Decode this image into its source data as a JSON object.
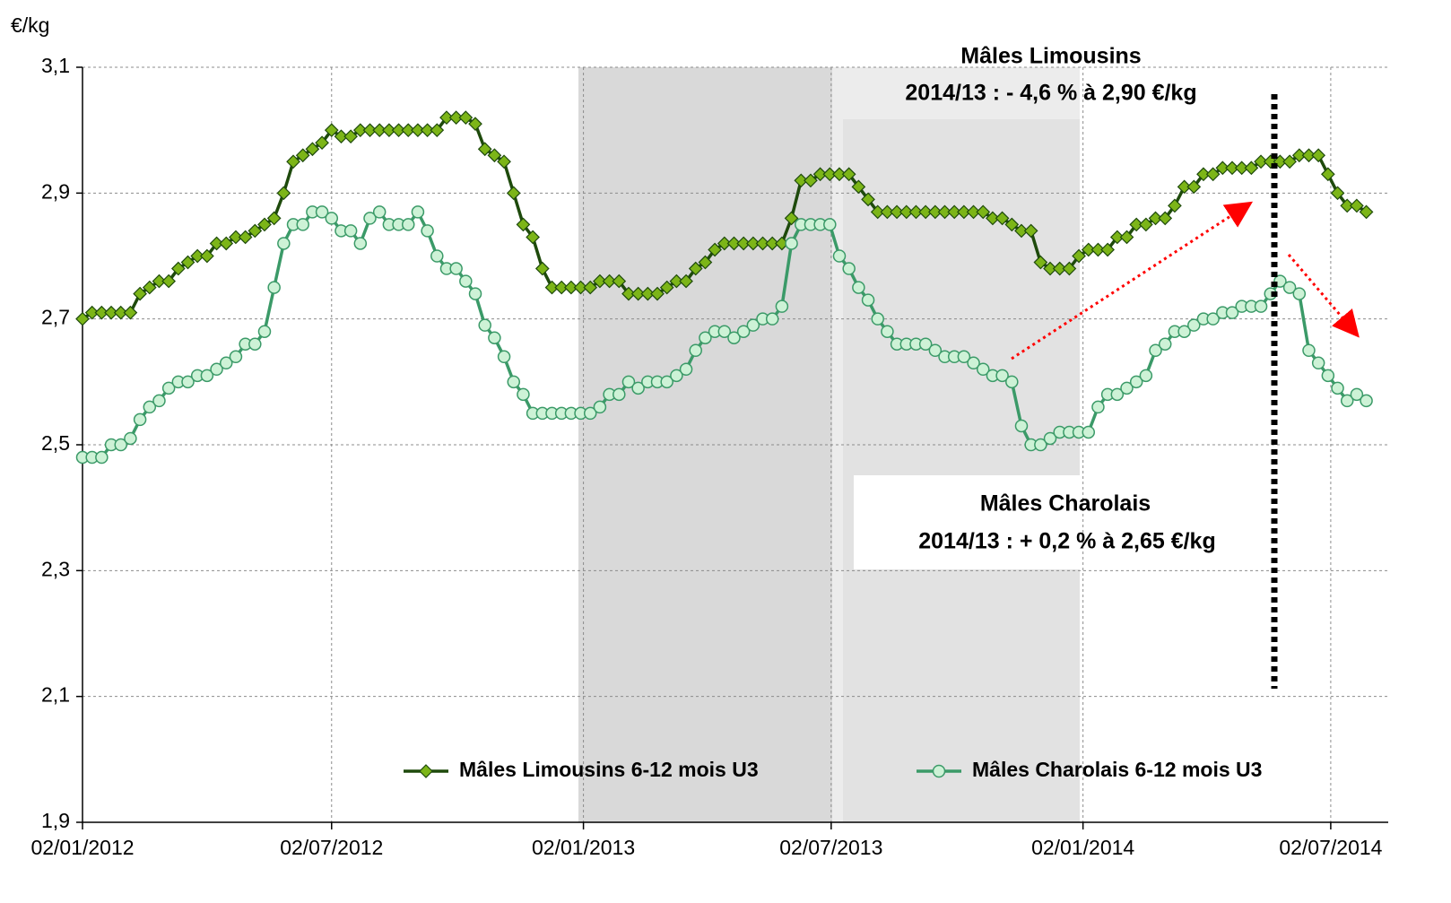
{
  "chart_data": {
    "type": "line",
    "y_label": "€/kg",
    "x": [
      "02/01/2012",
      "09/01/2012",
      "16/01/2012",
      "23/01/2012",
      "30/01/2012",
      "06/02/2012",
      "13/02/2012",
      "20/02/2012",
      "27/02/2012",
      "05/03/2012",
      "12/03/2012",
      "19/03/2012",
      "26/03/2012",
      "02/04/2012",
      "09/04/2012",
      "16/04/2012",
      "23/04/2012",
      "30/04/2012",
      "07/05/2012",
      "14/05/2012",
      "21/05/2012",
      "28/05/2012",
      "04/06/2012",
      "11/06/2012",
      "18/06/2012",
      "25/06/2012",
      "02/07/2012",
      "09/07/2012",
      "16/07/2012",
      "23/07/2012",
      "30/07/2012",
      "06/08/2012",
      "13/08/2012",
      "20/08/2012",
      "27/08/2012",
      "03/09/2012",
      "10/09/2012",
      "17/09/2012",
      "24/09/2012",
      "01/10/2012",
      "08/10/2012",
      "15/10/2012",
      "22/10/2012",
      "29/10/2012",
      "05/11/2012",
      "12/11/2012",
      "19/11/2012",
      "26/11/2012",
      "03/12/2012",
      "10/12/2012",
      "17/12/2012",
      "24/12/2012",
      "31/12/2012",
      "07/01/2013",
      "14/01/2013",
      "21/01/2013",
      "28/01/2013",
      "04/02/2013",
      "11/02/2013",
      "18/02/2013",
      "25/02/2013",
      "04/03/2013",
      "11/03/2013",
      "18/03/2013",
      "25/03/2013",
      "01/04/2013",
      "08/04/2013",
      "15/04/2013",
      "22/04/2013",
      "29/04/2013",
      "06/05/2013",
      "13/05/2013",
      "20/05/2013",
      "27/05/2013",
      "03/06/2013",
      "10/06/2013",
      "17/06/2013",
      "24/06/2013",
      "01/07/2013",
      "08/07/2013",
      "15/07/2013",
      "22/07/2013",
      "29/07/2013",
      "05/08/2013",
      "12/08/2013",
      "19/08/2013",
      "26/08/2013",
      "02/09/2013",
      "09/09/2013",
      "16/09/2013",
      "23/09/2013",
      "30/09/2013",
      "07/10/2013",
      "14/10/2013",
      "21/10/2013",
      "28/10/2013",
      "04/11/2013",
      "11/11/2013",
      "18/11/2013",
      "25/11/2013",
      "02/12/2013",
      "09/12/2013",
      "16/12/2013",
      "23/12/2013",
      "30/12/2013",
      "06/01/2014",
      "13/01/2014",
      "20/01/2014",
      "27/01/2014",
      "03/02/2014",
      "10/02/2014",
      "17/02/2014",
      "24/02/2014",
      "03/03/2014",
      "10/03/2014",
      "17/03/2014",
      "24/03/2014",
      "31/03/2014",
      "07/04/2014",
      "14/04/2014",
      "21/04/2014",
      "28/04/2014",
      "05/05/2014",
      "12/05/2014",
      "19/05/2014",
      "26/05/2014",
      "02/06/2014",
      "09/06/2014",
      "16/06/2014",
      "23/06/2014",
      "30/06/2014",
      "07/07/2014",
      "14/07/2014",
      "21/07/2014",
      "28/07/2014"
    ],
    "series": [
      {
        "name": "Mâles Limousins 6-12 mois U3",
        "color": "#1e4a0c",
        "marker": "diamond",
        "marker_fill": "#7cb518",
        "values": [
          2.7,
          2.71,
          2.71,
          2.71,
          2.71,
          2.71,
          2.74,
          2.75,
          2.76,
          2.76,
          2.78,
          2.79,
          2.8,
          2.8,
          2.82,
          2.82,
          2.83,
          2.83,
          2.84,
          2.85,
          2.86,
          2.9,
          2.95,
          2.96,
          2.97,
          2.98,
          3.0,
          2.99,
          2.99,
          3.0,
          3.0,
          3.0,
          3.0,
          3.0,
          3.0,
          3.0,
          3.0,
          3.0,
          3.02,
          3.02,
          3.02,
          3.01,
          2.97,
          2.96,
          2.95,
          2.9,
          2.85,
          2.83,
          2.78,
          2.75,
          2.75,
          2.75,
          2.75,
          2.75,
          2.76,
          2.76,
          2.76,
          2.74,
          2.74,
          2.74,
          2.74,
          2.75,
          2.76,
          2.76,
          2.78,
          2.79,
          2.81,
          2.82,
          2.82,
          2.82,
          2.82,
          2.82,
          2.82,
          2.82,
          2.86,
          2.92,
          2.92,
          2.93,
          2.93,
          2.93,
          2.93,
          2.91,
          2.89,
          2.87,
          2.87,
          2.87,
          2.87,
          2.87,
          2.87,
          2.87,
          2.87,
          2.87,
          2.87,
          2.87,
          2.87,
          2.86,
          2.86,
          2.85,
          2.84,
          2.84,
          2.79,
          2.78,
          2.78,
          2.78,
          2.8,
          2.81,
          2.81,
          2.81,
          2.83,
          2.83,
          2.85,
          2.85,
          2.86,
          2.86,
          2.88,
          2.91,
          2.91,
          2.93,
          2.93,
          2.94,
          2.94,
          2.94,
          2.94,
          2.95,
          2.95,
          2.95,
          2.95,
          2.96,
          2.96,
          2.96,
          2.93,
          2.9,
          2.88,
          2.88,
          2.87
        ]
      },
      {
        "name": "Mâles Charolais 6-12 mois U3",
        "color": "#3b9a68",
        "marker": "circle",
        "marker_fill": "#cdf2d6",
        "values": [
          2.48,
          2.48,
          2.48,
          2.5,
          2.5,
          2.51,
          2.54,
          2.56,
          2.57,
          2.59,
          2.6,
          2.6,
          2.61,
          2.61,
          2.62,
          2.63,
          2.64,
          2.66,
          2.66,
          2.68,
          2.75,
          2.82,
          2.85,
          2.85,
          2.87,
          2.87,
          2.86,
          2.84,
          2.84,
          2.82,
          2.86,
          2.87,
          2.85,
          2.85,
          2.85,
          2.87,
          2.84,
          2.8,
          2.78,
          2.78,
          2.76,
          2.74,
          2.69,
          2.67,
          2.64,
          2.6,
          2.58,
          2.55,
          2.55,
          2.55,
          2.55,
          2.55,
          2.55,
          2.55,
          2.56,
          2.58,
          2.58,
          2.6,
          2.59,
          2.6,
          2.6,
          2.6,
          2.61,
          2.62,
          2.65,
          2.67,
          2.68,
          2.68,
          2.67,
          2.68,
          2.69,
          2.7,
          2.7,
          2.72,
          2.82,
          2.85,
          2.85,
          2.85,
          2.85,
          2.8,
          2.78,
          2.75,
          2.73,
          2.7,
          2.68,
          2.66,
          2.66,
          2.66,
          2.66,
          2.65,
          2.64,
          2.64,
          2.64,
          2.63,
          2.62,
          2.61,
          2.61,
          2.6,
          2.53,
          2.5,
          2.5,
          2.51,
          2.52,
          2.52,
          2.52,
          2.52,
          2.56,
          2.58,
          2.58,
          2.59,
          2.6,
          2.61,
          2.65,
          2.66,
          2.68,
          2.68,
          2.69,
          2.7,
          2.7,
          2.71,
          2.71,
          2.72,
          2.72,
          2.72,
          2.74,
          2.76,
          2.75,
          2.74,
          2.65,
          2.63,
          2.61,
          2.59,
          2.57,
          2.58,
          2.57
        ]
      }
    ],
    "xlim": [
      "02/01/2012",
      "13/08/2014"
    ],
    "xticks": [
      "02/01/2012",
      "02/07/2012",
      "02/01/2013",
      "02/07/2013",
      "02/01/2014",
      "02/07/2014"
    ],
    "ylim": [
      1.9,
      3.1
    ],
    "yticks": [
      {
        "value": 1.9,
        "label": "1,9"
      },
      {
        "value": 2.1,
        "label": "2,1"
      },
      {
        "value": 2.3,
        "label": "2,3"
      },
      {
        "value": 2.5,
        "label": "2,5"
      },
      {
        "value": 2.7,
        "label": "2,7"
      },
      {
        "value": 2.9,
        "label": "2,9"
      },
      {
        "value": 3.1,
        "label": "3,1"
      }
    ],
    "grid": true,
    "legend": "bottom-right",
    "annotations": [
      {
        "text": "Mâles Limousins",
        "color": "#76a21e"
      },
      {
        "text": "2014/13 : - 4,6 % à 2,90 €/kg",
        "color": "#76a21e"
      },
      {
        "text": "Mâles Charolais",
        "color": "#3b9a68"
      },
      {
        "text": "2014/13 : + 0,2 % à 2,65 €/kg",
        "color": "#3b9a68"
      }
    ]
  }
}
